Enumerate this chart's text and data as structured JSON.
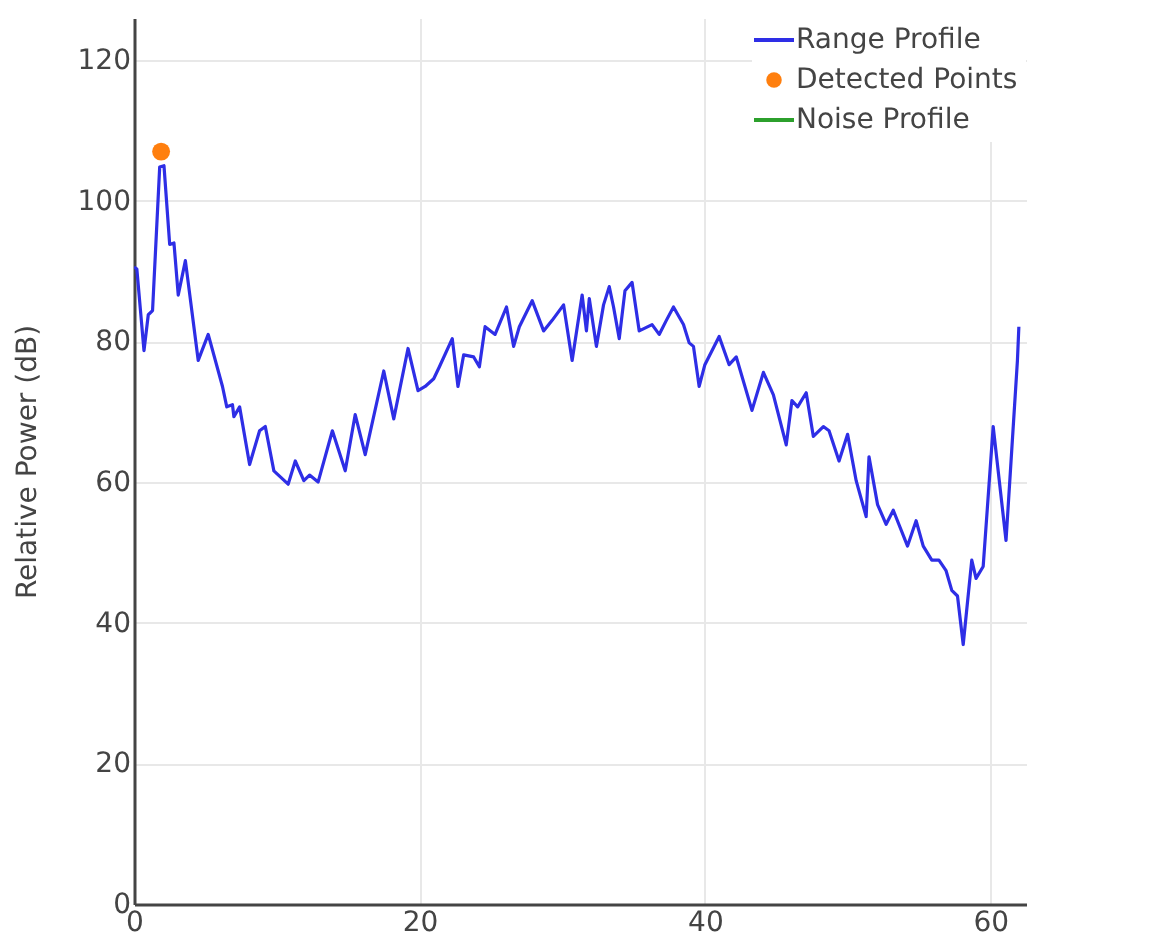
{
  "chart_data": {
    "type": "line",
    "ylabel": "Relative Power (dB)",
    "xlim": [
      0,
      62.5
    ],
    "ylim": [
      0,
      126
    ],
    "xticks": [
      0,
      20,
      40,
      60
    ],
    "yticks": [
      0,
      20,
      40,
      60,
      80,
      100,
      120
    ],
    "grid": true,
    "legend": "top right",
    "series": [
      {
        "name": "Range Profile",
        "color": "#2e2ee6",
        "x": [
          0,
          0.2,
          0.7,
          1.0,
          1.3,
          1.8,
          2.1,
          2.5,
          2.8,
          3.1,
          3.6,
          4.5,
          5.2,
          6.2,
          6.5,
          6.9,
          7.0,
          7.4,
          8.1,
          8.8,
          9.2,
          9.8,
          10.8,
          11.3,
          11.9,
          12.3,
          12.9,
          13.9,
          14.8,
          15.5,
          16.2,
          17.5,
          18.2,
          19.2,
          19.9,
          20.4,
          21.0,
          21.4,
          22.3,
          22.7,
          23.1,
          23.8,
          24.2,
          24.6,
          25.3,
          26.1,
          26.6,
          27.0,
          27.9,
          28.7,
          29.3,
          30.1,
          30.7,
          31.4,
          31.7,
          31.9,
          32.4,
          32.9,
          33.3,
          33.6,
          34.0,
          34.4,
          34.9,
          35.4,
          36.3,
          36.8,
          37.3,
          37.8,
          38.5,
          38.9,
          39.2,
          39.6,
          40.0,
          41.0,
          41.7,
          42.2,
          43.3,
          44.1,
          44.8,
          45.7,
          46.1,
          46.5,
          47.1,
          47.6,
          48.3,
          48.7,
          49.4,
          50.0,
          50.6,
          51.3,
          51.5,
          52.1,
          52.7,
          53.2,
          54.2,
          54.8,
          55.3,
          55.9,
          56.4,
          56.9,
          57.3,
          57.7,
          58.1,
          58.7,
          59.0,
          59.5,
          60.2,
          61.1,
          61.9,
          62.0
        ],
        "values": [
          90.6,
          90.3,
          78.7,
          83.8,
          84.4,
          104.8,
          105,
          93.8,
          94,
          86.6,
          91.5,
          77.3,
          81,
          73.6,
          70.7,
          71,
          69.3,
          70.7,
          62.5,
          67.3,
          67.9,
          61.6,
          59.7,
          63,
          60.2,
          61,
          60,
          67.3,
          61.6,
          69.6,
          63.9,
          75.8,
          69,
          79,
          73,
          73.6,
          74.7,
          76.4,
          80.4,
          73.6,
          78.1,
          77.8,
          76.4,
          82.1,
          81,
          84.9,
          79.3,
          82.1,
          85.8,
          81.5,
          83,
          85.2,
          77.3,
          86.6,
          81.5,
          86.1,
          79.3,
          85.2,
          87.8,
          84.9,
          80.4,
          87.2,
          88.4,
          81.5,
          82.4,
          81,
          83,
          84.9,
          82.4,
          79.8,
          79.3,
          73.6,
          76.7,
          80.7,
          76.7,
          77.8,
          70.2,
          75.6,
          72.4,
          65.3,
          71.6,
          70.7,
          72.7,
          66.5,
          67.9,
          67.3,
          63,
          66.8,
          60.2,
          55.1,
          63.6,
          56.8,
          54,
          56,
          50.9,
          54.5,
          50.9,
          48.9,
          48.9,
          47.4,
          44.6,
          43.8,
          36.9,
          48.9,
          46.3,
          48,
          67.9,
          51.7,
          77.3,
          82.1
        ]
      },
      {
        "name": "Detected Points",
        "type": "scatter",
        "marker": "circle",
        "color": "#ff7f0e",
        "x": [
          1.9
        ],
        "values": [
          107
        ]
      },
      {
        "name": "Noise Profile",
        "color": "#2ca02c"
      }
    ]
  }
}
